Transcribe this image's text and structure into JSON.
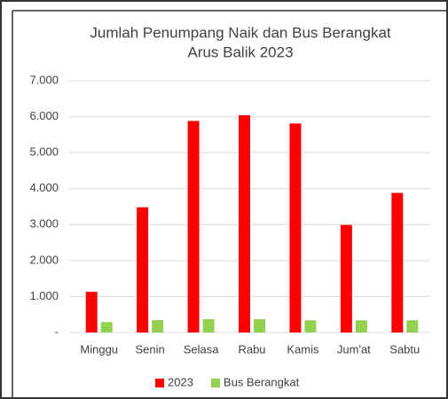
{
  "chart_data": {
    "type": "bar",
    "title": [
      "Jumlah Penumpang Naik dan Bus Berangkat",
      "Arus Balik 2023"
    ],
    "categories": [
      "Minggu",
      "Senin",
      "Selasa",
      "Rabu",
      "Kamis",
      "Jum'at",
      "Sabtu"
    ],
    "series": [
      {
        "name": "2023",
        "color": "#ff0000",
        "values": [
          1130,
          3480,
          5880,
          6040,
          5810,
          2990,
          3880
        ]
      },
      {
        "name": "Bus Berangkat",
        "color": "#92d050",
        "values": [
          290,
          345,
          370,
          370,
          340,
          340,
          340
        ]
      }
    ],
    "ylim": [
      0,
      7000
    ],
    "yticks": [
      {
        "value": 0,
        "label": "-"
      },
      {
        "value": 1000,
        "label": "1.000"
      },
      {
        "value": 2000,
        "label": "2.000"
      },
      {
        "value": 3000,
        "label": "3.000"
      },
      {
        "value": 4000,
        "label": "4.000"
      },
      {
        "value": 5000,
        "label": "5.000"
      },
      {
        "value": 6000,
        "label": "6.000"
      },
      {
        "value": 7000,
        "label": "7.000"
      }
    ],
    "grid": true,
    "legend": "bottom"
  }
}
